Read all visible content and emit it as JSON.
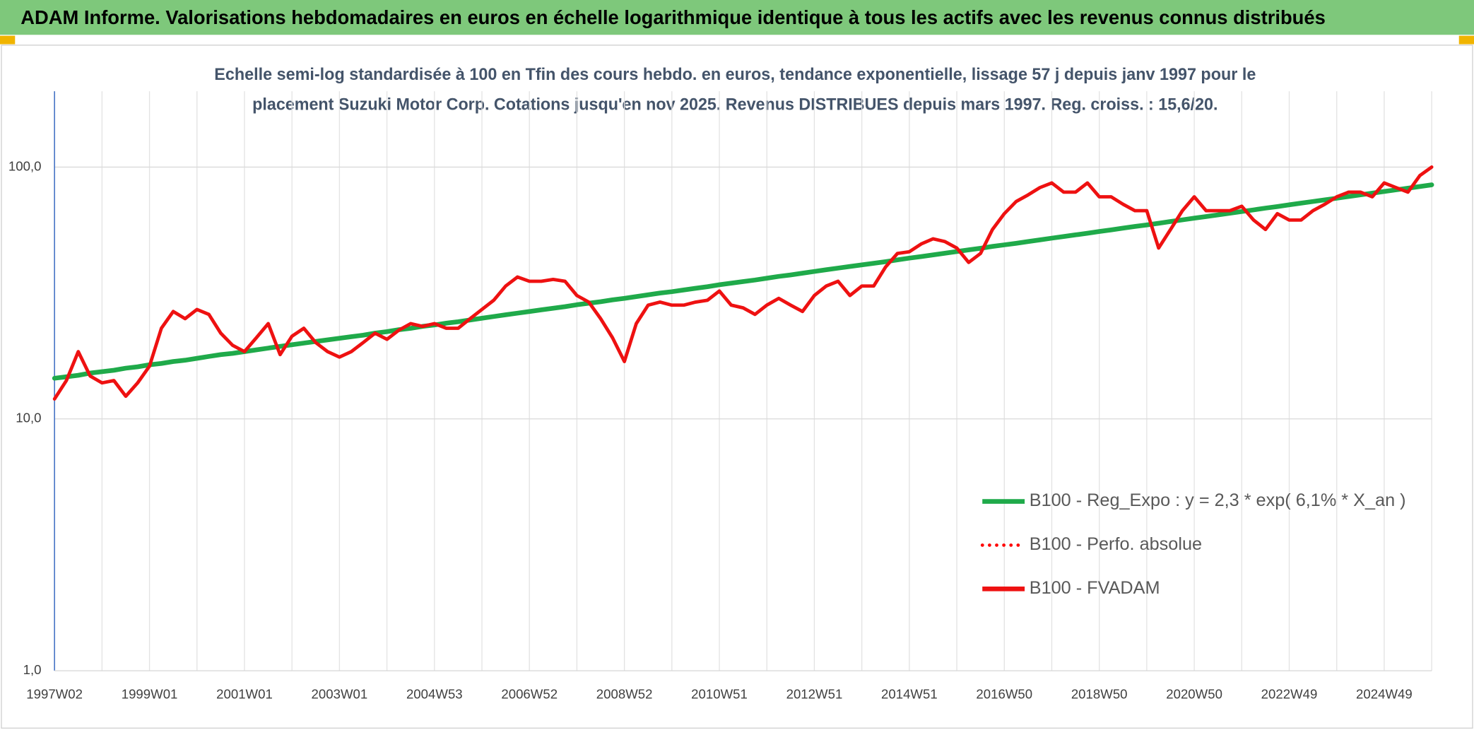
{
  "chart_data": {
    "type": "line",
    "title": "ADAM Informe. Valorisations hebdomadaires en euros en échelle logarithmique identique à tous les actifs avec les revenus connus distribués",
    "subtitle": [
      "Echelle semi-log standardisée à 100 en Tfin des cours hebdo. en euros, tendance exponentielle, lissage 57 j depuis janv 1997 pour le",
      "placement Suzuki Motor Corp. Cotations jusqu'en nov 2025. Revenus DISTRIBUES depuis mars 1997. Reg. croiss. : 15,6/20."
    ],
    "categories": [
      "1997W02",
      null,
      null,
      null,
      null,
      null,
      null,
      null,
      "1999W01",
      null,
      null,
      null,
      null,
      null,
      null,
      null,
      "2001W01",
      null,
      null,
      null,
      null,
      null,
      null,
      null,
      "2003W01",
      null,
      null,
      null,
      null,
      null,
      null,
      null,
      "2004W53",
      null,
      null,
      null,
      null,
      null,
      null,
      null,
      "2006W52",
      null,
      null,
      null,
      null,
      null,
      null,
      null,
      "2008W52",
      null,
      null,
      null,
      null,
      null,
      null,
      null,
      "2010W51",
      null,
      null,
      null,
      null,
      null,
      null,
      null,
      "2012W51",
      null,
      null,
      null,
      null,
      null,
      null,
      null,
      "2014W51",
      null,
      null,
      null,
      null,
      null,
      null,
      null,
      "2016W50",
      null,
      null,
      null,
      null,
      null,
      null,
      null,
      "2018W50",
      null,
      null,
      null,
      null,
      null,
      null,
      null,
      "2020W50",
      null,
      null,
      null,
      null,
      null,
      null,
      null,
      "2022W49",
      null,
      null,
      null,
      null,
      null,
      null,
      null,
      "2024W49",
      null,
      null,
      null,
      null
    ],
    "log_scale": true,
    "ylim": [
      1,
      200
    ],
    "yticks": [
      {
        "value": 1,
        "label": "1,0"
      },
      {
        "value": 10,
        "label": "10,0"
      },
      {
        "value": 100,
        "label": "100,0"
      }
    ],
    "grid": true,
    "legend": "lower right",
    "series": [
      {
        "name": "B100 - Reg_Expo : y = 2,3 * exp( 6,1% *  X_an )",
        "color": "#1faa4a",
        "line_style": "solid",
        "values": [
          14.5,
          14.7,
          14.9,
          15.2,
          15.4,
          15.6,
          15.9,
          16.1,
          16.4,
          16.6,
          16.9,
          17.1,
          17.4,
          17.7,
          18.0,
          18.2,
          18.5,
          18.8,
          19.1,
          19.4,
          19.7,
          20.0,
          20.3,
          20.6,
          20.9,
          21.2,
          21.5,
          21.9,
          22.2,
          22.6,
          22.9,
          23.3,
          23.6,
          24.0,
          24.3,
          24.7,
          25.1,
          25.5,
          25.9,
          26.3,
          26.7,
          27.1,
          27.5,
          27.9,
          28.4,
          28.8,
          29.2,
          29.7,
          30.1,
          30.6,
          31.1,
          31.6,
          32.0,
          32.5,
          33.0,
          33.5,
          34.1,
          34.6,
          35.1,
          35.6,
          36.2,
          36.8,
          37.3,
          37.9,
          38.5,
          39.1,
          39.7,
          40.3,
          40.9,
          41.5,
          42.1,
          42.8,
          43.5,
          44.1,
          44.8,
          45.5,
          46.2,
          46.9,
          47.6,
          48.4,
          49.1,
          49.8,
          50.6,
          51.4,
          52.2,
          53.0,
          53.8,
          54.6,
          55.5,
          56.3,
          57.2,
          58.1,
          58.9,
          59.8,
          60.8,
          61.7,
          62.7,
          63.6,
          64.6,
          65.6,
          66.6,
          67.6,
          68.7,
          69.7,
          70.8,
          71.9,
          73.0,
          74.1,
          75.2,
          76.4,
          77.6,
          78.8,
          80.0,
          81.2,
          82.4,
          83.7,
          85.0
        ]
      },
      {
        "name": "B100 - Perfo. absolue",
        "color": "#ff0000",
        "line_style": "dotted",
        "values": [
          12.0,
          14.2,
          18.5,
          14.8,
          13.9,
          14.2,
          12.3,
          13.9,
          16.2,
          22.9,
          26.7,
          25.0,
          27.2,
          26.0,
          21.9,
          19.6,
          18.5,
          21.0,
          23.9,
          18.0,
          21.3,
          22.9,
          20.1,
          18.5,
          17.6,
          18.5,
          20.1,
          21.9,
          20.7,
          22.5,
          23.9,
          23.3,
          23.9,
          22.9,
          22.9,
          25.0,
          27.2,
          29.6,
          33.7,
          36.6,
          35.2,
          35.2,
          35.8,
          35.2,
          30.9,
          29.1,
          25.0,
          21.0,
          16.9,
          23.9,
          28.3,
          29.1,
          28.3,
          28.3,
          29.1,
          29.6,
          32.2,
          28.3,
          27.6,
          26.0,
          28.3,
          30.1,
          28.3,
          26.7,
          30.9,
          33.7,
          35.2,
          30.9,
          33.7,
          33.7,
          40.1,
          45.4,
          46.1,
          49.5,
          51.9,
          50.6,
          47.7,
          41.8,
          45.4,
          56.5,
          65.3,
          73.0,
          77.5,
          82.9,
          86.5,
          79.5,
          79.5,
          86.5,
          76.2,
          76.2,
          71.2,
          67.1,
          67.1,
          47.7,
          56.5,
          67.1,
          76.2,
          67.1,
          67.1,
          67.1,
          69.9,
          61.6,
          56.5,
          65.3,
          61.6,
          61.6,
          67.1,
          71.2,
          76.2,
          79.5,
          79.5,
          76.2,
          86.5,
          82.9,
          79.5,
          92.5,
          100
        ]
      },
      {
        "name": "B100 - FVADAM",
        "color": "#ee1111",
        "line_style": "solid",
        "values": [
          12.0,
          14.2,
          18.5,
          14.8,
          13.9,
          14.2,
          12.3,
          13.9,
          16.2,
          22.9,
          26.7,
          25.0,
          27.2,
          26.0,
          21.9,
          19.6,
          18.5,
          21.0,
          23.9,
          18.0,
          21.3,
          22.9,
          20.1,
          18.5,
          17.6,
          18.5,
          20.1,
          21.9,
          20.7,
          22.5,
          23.9,
          23.3,
          23.9,
          22.9,
          22.9,
          25.0,
          27.2,
          29.6,
          33.7,
          36.6,
          35.2,
          35.2,
          35.8,
          35.2,
          30.9,
          29.1,
          25.0,
          21.0,
          16.9,
          23.9,
          28.3,
          29.1,
          28.3,
          28.3,
          29.1,
          29.6,
          32.2,
          28.3,
          27.6,
          26.0,
          28.3,
          30.1,
          28.3,
          26.7,
          30.9,
          33.7,
          35.2,
          30.9,
          33.7,
          33.7,
          40.1,
          45.4,
          46.1,
          49.5,
          51.9,
          50.6,
          47.7,
          41.8,
          45.4,
          56.5,
          65.3,
          73.0,
          77.5,
          82.9,
          86.5,
          79.5,
          79.5,
          86.5,
          76.2,
          76.2,
          71.2,
          67.1,
          67.1,
          47.7,
          56.5,
          67.1,
          76.2,
          67.1,
          67.1,
          67.1,
          69.9,
          61.6,
          56.5,
          65.3,
          61.6,
          61.6,
          67.1,
          71.2,
          76.2,
          79.5,
          79.5,
          76.2,
          86.5,
          82.9,
          79.5,
          92.5,
          100
        ]
      }
    ]
  }
}
